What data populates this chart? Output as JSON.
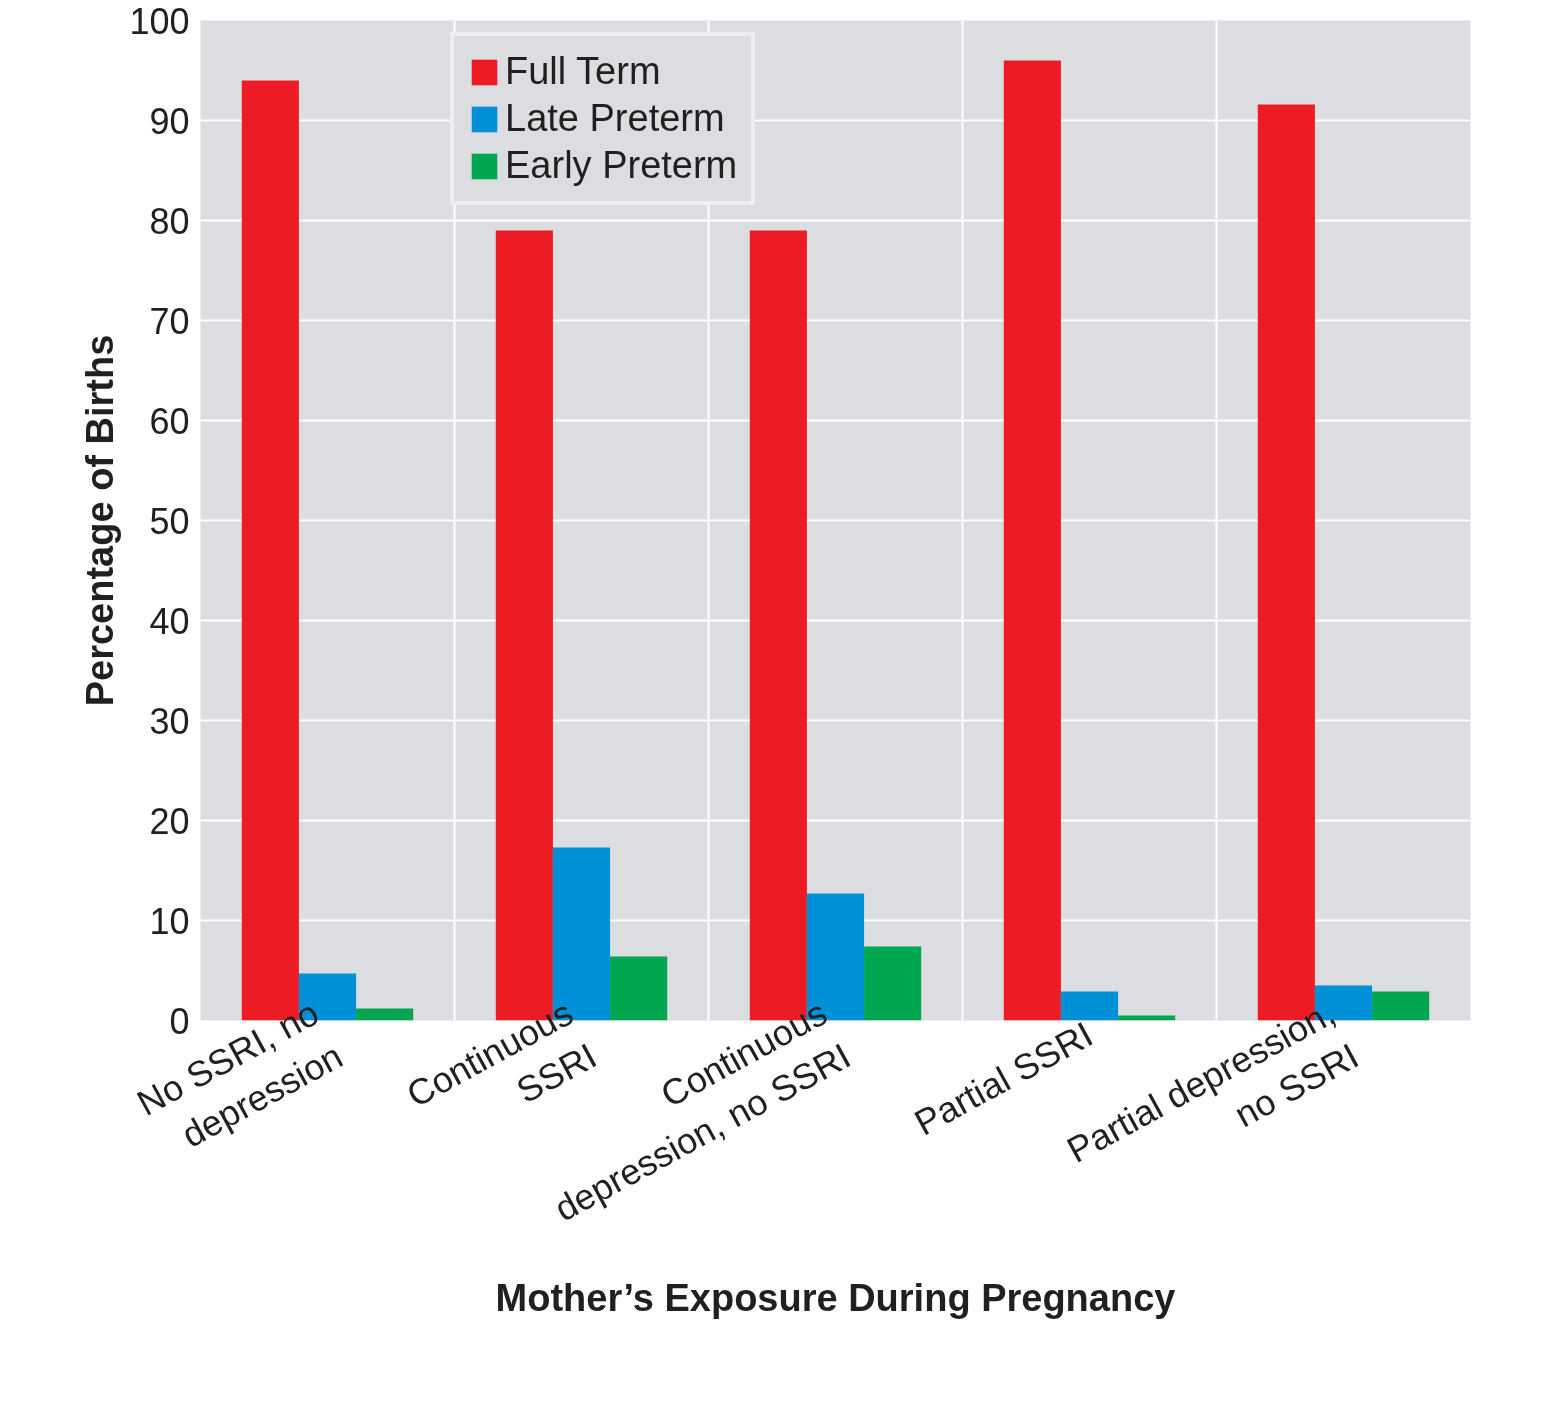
{
  "chart_data": {
    "type": "bar",
    "xlabel": "Mother’s Exposure During Pregnancy",
    "ylabel": "Percentage of Births",
    "categories": [
      "No SSRI, no\ndepression",
      "Continuous\nSSRI",
      "Continuous\ndepression, no SSRI",
      "Partial SSRI",
      "Partial depression,\nno SSRI"
    ],
    "series": [
      {
        "name": "Full Term",
        "color": "#ed1c24",
        "values": [
          94,
          79,
          79,
          96,
          91.6
        ]
      },
      {
        "name": "Late Preterm",
        "color": "#0090d8",
        "values": [
          4.7,
          17.3,
          12.7,
          2.9,
          3.5
        ]
      },
      {
        "name": "Early Preterm",
        "color": "#00a650",
        "values": [
          1.2,
          6.4,
          7.4,
          0.5,
          2.9
        ]
      }
    ],
    "ylim": [
      0,
      100
    ],
    "yticks": [
      0,
      10,
      20,
      30,
      40,
      50,
      60,
      70,
      80,
      90,
      100
    ],
    "grid": true,
    "legend": "top left"
  }
}
